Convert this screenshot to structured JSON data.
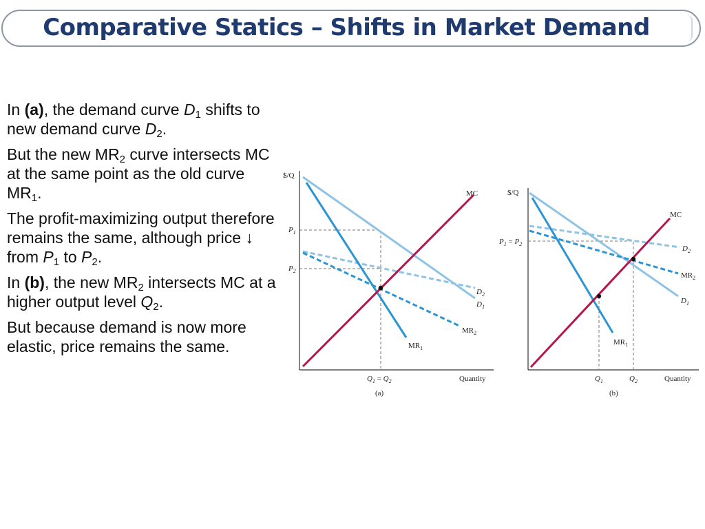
{
  "title": "Comparative Statics – Shifts in Market Demand",
  "bullets": [
    {
      "pre": "In ",
      "bold": "(a)",
      "mid1": ", the demand curve ",
      "i1": "D",
      "s1": "1",
      "mid2": " shifts to new demand curve ",
      "i2": "D",
      "s2": "2",
      "end": "."
    },
    {
      "t1": "But the new MR",
      "s1": "2",
      "t2": " curve intersects MC at the same point as the old curve MR",
      "s2": "1",
      "t3": "."
    },
    {
      "t1": "The profit-maximizing output therefore remains the same, although price ↓ from ",
      "i1": "P",
      "s1": "1",
      "t2": " to ",
      "i2": "P",
      "s2": "2",
      "t3": "."
    },
    {
      "pre": "In ",
      "bold": "(b)",
      "t1": ", the new MR",
      "s1": "2",
      "t2": " intersects MC at a higher output level ",
      "i1": "Q",
      "s2": "2",
      "t3": "."
    },
    {
      "t1": "But because demand is now more elastic, price remains the same."
    }
  ],
  "panel_a": {
    "y_axis_label": "$/Q",
    "x_axis_label": "Quantity",
    "caption": "(a)",
    "price1": "P1",
    "price2": "P2",
    "quantity": "Q1 = Q2",
    "curves": [
      "MC",
      "D1",
      "D2",
      "MR1",
      "MR2"
    ]
  },
  "panel_b": {
    "y_axis_label": "$/Q",
    "x_axis_label": "Quantity",
    "caption": "(b)",
    "price": "P1 = P2",
    "quantity1": "Q1",
    "quantity2": "Q2",
    "curves": [
      "MC",
      "D1",
      "D2",
      "MR1",
      "MR2"
    ]
  },
  "colors": {
    "mc": "#b5174b",
    "d1": "#8fc3e6",
    "d2": "#8fc3e6",
    "mr1": "#2b95d3",
    "mr2": "#2b95d3",
    "title": "#1f3a6e"
  }
}
